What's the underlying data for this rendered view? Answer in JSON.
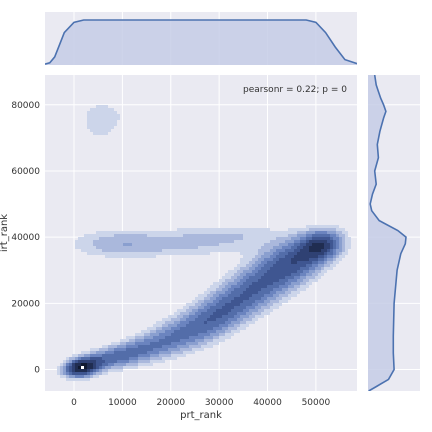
{
  "chart_data": {
    "type": "kde-joint",
    "xlabel": "prt_rank",
    "ylabel": "irt_rank",
    "xlim": [
      -6000,
      58500
    ],
    "ylim": [
      -6500,
      89000
    ],
    "xticks": [
      {
        "value": 0,
        "label": "0"
      },
      {
        "value": 10000,
        "label": "10000"
      },
      {
        "value": 20000,
        "label": "20000"
      },
      {
        "value": 30000,
        "label": "30000"
      },
      {
        "value": 40000,
        "label": "40000"
      },
      {
        "value": 50000,
        "label": "50000"
      }
    ],
    "yticks": [
      {
        "value": 0,
        "label": "0"
      },
      {
        "value": 20000,
        "label": "20000"
      },
      {
        "value": 40000,
        "label": "40000"
      },
      {
        "value": 60000,
        "label": "60000"
      },
      {
        "value": 80000,
        "label": "80000"
      }
    ],
    "annotation": "pearsonr = 0.22; p = 0",
    "grid": true,
    "colors": {
      "background": "#eaeaf2",
      "grid": "#ffffff",
      "line": "#4c72b0",
      "marginal_fill": "#c5cde6",
      "levels": [
        "#ccd5ea",
        "#aab8dc",
        "#8a9fcf",
        "#6b84bf",
        "#536da9",
        "#3f5691",
        "#2f4173",
        "#202d51",
        "#111a30"
      ],
      "peak": "#ffffff"
    },
    "contour_levels": 9,
    "density_components": [
      {
        "x": 1500,
        "y": 500,
        "sx": 2200,
        "sy": 1800,
        "rho": 0.2,
        "w": 1.0
      },
      {
        "x": 6000,
        "y": 3000,
        "sx": 4200,
        "sy": 2500,
        "rho": 0.5,
        "w": 0.45
      },
      {
        "x": 13000,
        "y": 5500,
        "sx": 4500,
        "sy": 3200,
        "rho": 0.5,
        "w": 0.32
      },
      {
        "x": 20000,
        "y": 9500,
        "sx": 5000,
        "sy": 4200,
        "rho": 0.5,
        "w": 0.3
      },
      {
        "x": 27000,
        "y": 14000,
        "sx": 5000,
        "sy": 5000,
        "rho": 0.5,
        "w": 0.34
      },
      {
        "x": 33000,
        "y": 20000,
        "sx": 5000,
        "sy": 5500,
        "rho": 0.5,
        "w": 0.38
      },
      {
        "x": 40000,
        "y": 27000,
        "sx": 5000,
        "sy": 5500,
        "rho": 0.4,
        "w": 0.42
      },
      {
        "x": 46000,
        "y": 33000,
        "sx": 4500,
        "sy": 4500,
        "rho": 0.3,
        "w": 0.5
      },
      {
        "x": 51000,
        "y": 37500,
        "sx": 3000,
        "sy": 3000,
        "rho": 0.2,
        "w": 0.72
      },
      {
        "x": 20000,
        "y": 38000,
        "sx": 12000,
        "sy": 3000,
        "rho": 0.0,
        "w": 0.2
      },
      {
        "x": 8000,
        "y": 38000,
        "sx": 6000,
        "sy": 3000,
        "rho": 0.0,
        "w": 0.14
      },
      {
        "x": 34000,
        "y": 41000,
        "sx": 8000,
        "sy": 2500,
        "rho": 0.0,
        "w": 0.12
      },
      {
        "x": 5000,
        "y": 75000,
        "sx": 3200,
        "sy": 5500,
        "rho": 0.0,
        "w": 0.14
      },
      {
        "x": 14000,
        "y": 77000,
        "sx": 4500,
        "sy": 4000,
        "rho": 0.0,
        "w": 0.09
      },
      {
        "x": 5000,
        "y": 58000,
        "sx": 3500,
        "sy": 2000,
        "rho": 0.0,
        "w": 0.07
      },
      {
        "x": 49000,
        "y": 77000,
        "sx": 2800,
        "sy": 5500,
        "rho": 0.0,
        "w": 0.1
      }
    ],
    "marginal_x": {
      "x": [
        -6000,
        -5000,
        -4000,
        -3000,
        -2000,
        0,
        2000,
        10000,
        20000,
        30000,
        40000,
        48000,
        50000,
        52000,
        54000,
        56000,
        58500
      ],
      "density": [
        0.02,
        0.05,
        0.18,
        0.45,
        0.72,
        0.95,
        1.0,
        1.0,
        1.0,
        1.0,
        1.0,
        1.0,
        0.95,
        0.72,
        0.4,
        0.12,
        0.03
      ]
    },
    "marginal_y": {
      "y": [
        -6500,
        -5000,
        -3000,
        0,
        5000,
        10000,
        20000,
        30000,
        35000,
        38000,
        40000,
        42000,
        45000,
        48000,
        50000,
        53000,
        56000,
        60000,
        64000,
        68000,
        72000,
        76000,
        78000,
        80000,
        82000,
        84000,
        86000,
        89000
      ],
      "density": [
        0.02,
        0.25,
        0.55,
        0.7,
        0.68,
        0.68,
        0.7,
        0.78,
        0.88,
        1.0,
        1.02,
        0.8,
        0.3,
        0.1,
        0.06,
        0.12,
        0.22,
        0.18,
        0.28,
        0.25,
        0.32,
        0.42,
        0.48,
        0.42,
        0.34,
        0.28,
        0.22,
        0.18
      ]
    }
  }
}
